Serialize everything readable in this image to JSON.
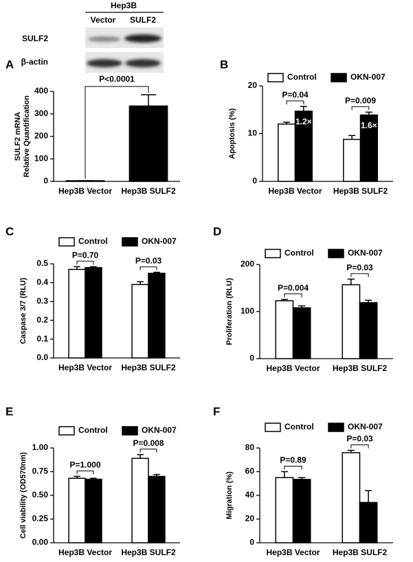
{
  "blot": {
    "title": "Hep3B",
    "lanes": [
      "Vector",
      "SULF2"
    ],
    "rows": [
      "SULF2",
      "β-actin"
    ]
  },
  "chart_data": [
    {
      "type": "bar",
      "label": "A",
      "ylabel": [
        "SULF2 mRNA",
        "Relative Quantification"
      ],
      "categories": [
        "Hep3B Vector",
        "Hep3B SULF2"
      ],
      "values": [
        3,
        335
      ],
      "errors": [
        0,
        50
      ],
      "color": "#000000",
      "ylim": [
        0,
        400
      ],
      "yticks": [
        0,
        100,
        200,
        300,
        400
      ],
      "p_values": [
        "P<0.0001"
      ]
    },
    {
      "type": "bar",
      "label": "B",
      "ylabel": "Apoptosis (%)",
      "categories": [
        "Hep3B Vector",
        "Hep3B SULF2"
      ],
      "series": [
        {
          "name": "Control",
          "color": "#ffffff",
          "values": [
            12,
            8.8
          ],
          "errors": [
            0.4,
            0.8
          ]
        },
        {
          "name": "OKN-007",
          "color": "#000000",
          "values": [
            14.7,
            13.9
          ],
          "errors": [
            1,
            0.6
          ],
          "bar_labels": [
            "1.2×",
            "1.6×"
          ]
        }
      ],
      "ylim": [
        0,
        20
      ],
      "yticks": [
        0,
        10,
        20
      ],
      "p_values": [
        "P=0.04",
        "P=0.009"
      ]
    },
    {
      "type": "bar",
      "label": "C",
      "ylabel": "Caspase 3/7 (RLU)",
      "categories": [
        "Hep3B Vector",
        "Hep3B SULF2"
      ],
      "series": [
        {
          "name": "Control",
          "color": "#ffffff",
          "values": [
            0.47,
            0.39
          ],
          "errors": [
            0.015,
            0.015
          ]
        },
        {
          "name": "OKN-007",
          "color": "#000000",
          "values": [
            0.48,
            0.45
          ],
          "errors": [
            0.005,
            0.005
          ]
        }
      ],
      "ylim": [
        0,
        0.5
      ],
      "yticks": [
        {
          "value": 0,
          "label": "0.0"
        },
        0.1,
        0.2,
        0.3,
        0.4,
        0.5
      ],
      "p_values": [
        "P=0.70",
        "P=0.03"
      ]
    },
    {
      "type": "bar",
      "label": "D",
      "ylabel": "Proliferation (RLU)",
      "categories": [
        "Hep3B Vector",
        "Hep3B SULF2"
      ],
      "series": [
        {
          "name": "Control",
          "color": "#ffffff",
          "values": [
            123,
            157
          ],
          "errors": [
            3,
            12
          ]
        },
        {
          "name": "OKN-007",
          "color": "#000000",
          "values": [
            108,
            119
          ],
          "errors": [
            4,
            5
          ]
        }
      ],
      "ylim": [
        0,
        200
      ],
      "yticks": [
        0,
        100,
        200
      ],
      "p_values": [
        "P=0.004",
        "P=0.03"
      ]
    },
    {
      "type": "bar",
      "label": "E",
      "ylabel": "Cell viability (OD570nm)",
      "categories": [
        "Hep3B Vector",
        "Hep3B SULF2"
      ],
      "series": [
        {
          "name": "Control",
          "color": "#ffffff",
          "values": [
            0.68,
            0.89
          ],
          "errors": [
            0.02,
            0.04
          ]
        },
        {
          "name": "OKN-007",
          "color": "#000000",
          "values": [
            0.67,
            0.7
          ],
          "errors": [
            0.01,
            0.02
          ]
        }
      ],
      "ylim": [
        0,
        1
      ],
      "yticks": [
        {
          "value": 0,
          "label": "0.00"
        },
        {
          "value": 0.25,
          "label": "0.25"
        },
        {
          "value": 0.5,
          "label": "0.50"
        },
        {
          "value": 0.75,
          "label": "0.75"
        },
        {
          "value": 1,
          "label": "1.00"
        }
      ],
      "p_values": [
        "P=1.000",
        "P=0.008"
      ]
    },
    {
      "type": "bar",
      "label": "F",
      "ylabel": "Migration (%)",
      "categories": [
        "Hep3B Vector",
        "Hep3B SULF2"
      ],
      "series": [
        {
          "name": "Control",
          "color": "#ffffff",
          "values": [
            55,
            76
          ],
          "errors": [
            5,
            2
          ]
        },
        {
          "name": "OKN-007",
          "color": "#000000",
          "values": [
            53.5,
            34
          ],
          "errors": [
            1.5,
            10
          ]
        }
      ],
      "ylim": [
        0,
        80
      ],
      "yticks": [
        0,
        20,
        40,
        60,
        80
      ],
      "p_values": [
        "P=0.89",
        "P=0.03"
      ]
    }
  ]
}
